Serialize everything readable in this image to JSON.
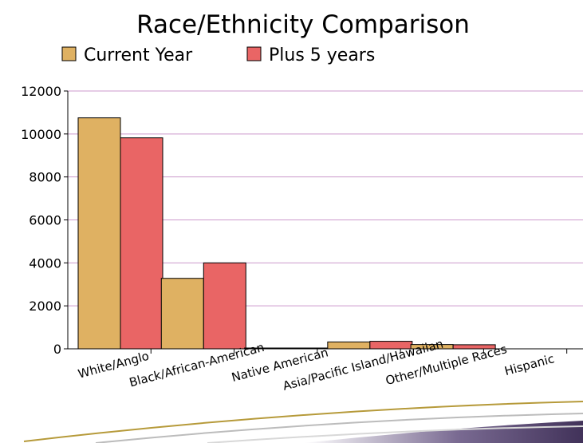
{
  "chart_data": {
    "type": "bar",
    "title": "Race/Ethnicity Comparison",
    "xlabel": "",
    "ylabel": "",
    "categories": [
      "White/Anglo",
      "Black/African-American",
      "Native American",
      "Asia/Pacific Island/Hawaiian",
      "Other/Multiple Races",
      "Hispanic"
    ],
    "series": [
      {
        "name": "Current Year",
        "values": [
          10750,
          3280,
          30,
          320,
          200,
          0
        ]
      },
      {
        "name": "Plus 5 years",
        "values": [
          9820,
          4000,
          30,
          350,
          190,
          0
        ]
      }
    ],
    "ylim": [
      0,
      12000
    ],
    "yticks": [
      0,
      2000,
      4000,
      6000,
      8000,
      10000,
      12000
    ],
    "grid": true,
    "legend": "top-left",
    "colors": {
      "series": [
        "#dfb162",
        "#e96565"
      ],
      "grid": "#cc99cc",
      "axis": "#000000",
      "decor_gold": "#b69a3a",
      "decor_purple": "#2c1b47"
    }
  }
}
